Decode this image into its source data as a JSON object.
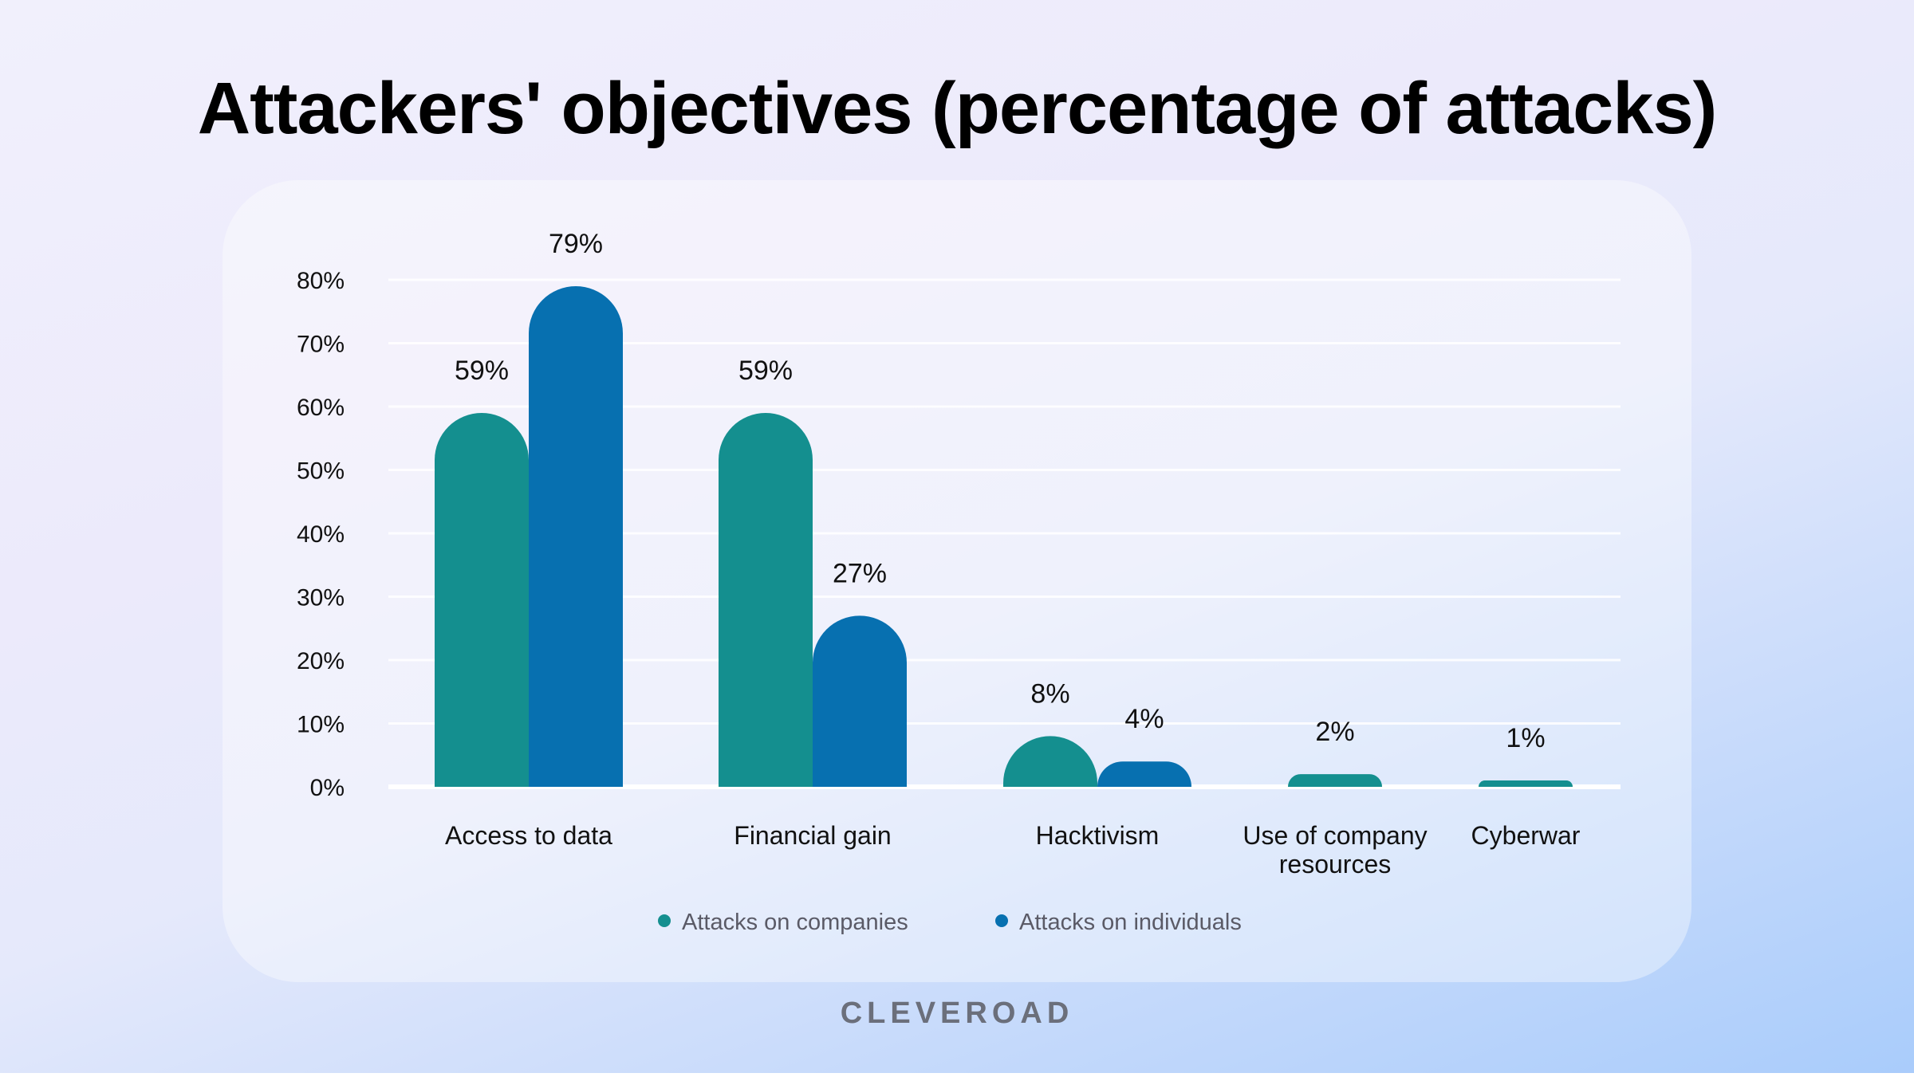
{
  "title": "Attackers' objectives (percentage of attacks)",
  "brand": "CLEVEROAD",
  "colors": {
    "companies": "#148f8f",
    "individuals": "#0770b0",
    "gridline": "#ffffff",
    "text": "#111111"
  },
  "chart_data": {
    "type": "bar",
    "title": "Attackers' objectives (percentage of attacks)",
    "categories": [
      "Access to data",
      "Financial gain",
      "Hacktivism",
      "Use of company resources",
      "Cyberwar"
    ],
    "series": [
      {
        "name": "Attacks on companies",
        "values": [
          59,
          59,
          8,
          2,
          1
        ],
        "labels": [
          "59%",
          "59%",
          "8%",
          "2%",
          "1%"
        ]
      },
      {
        "name": "Attacks on individuals",
        "values": [
          79,
          27,
          4,
          null,
          null
        ],
        "labels": [
          "79%",
          "27%",
          "4%",
          "",
          ""
        ]
      }
    ],
    "yticks": [
      "0%",
      "10%",
      "20%",
      "30%",
      "40%",
      "50%",
      "60%",
      "70%",
      "80%"
    ],
    "ylim": [
      0,
      80
    ],
    "grid": true,
    "legend": "bottom"
  }
}
